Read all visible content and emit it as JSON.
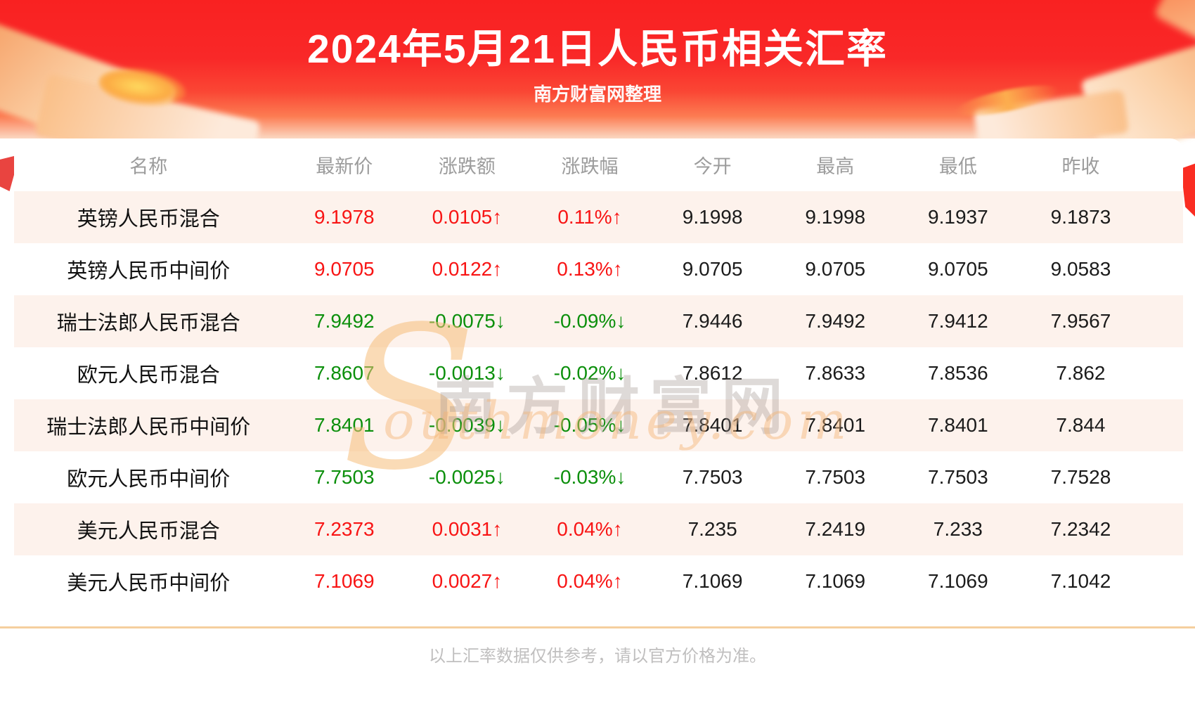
{
  "page": {
    "title": "2024年5月21日人民币相关汇率",
    "subtitle": "南方财富网整理",
    "footer_note": "以上汇率数据仅供参考，请以官方价格为准。"
  },
  "watermark": {
    "initial": "S",
    "cn": "南方财富网",
    "en": "outhmoney.com"
  },
  "icons": {
    "up-arrow": "↑",
    "down-arrow": "↓"
  },
  "colors": {
    "hero_red": "#f92222",
    "up_red": "#f81414",
    "down_green": "#0b8f0b",
    "row_alt_bg": "#fdf2ec",
    "header_text_gray": "#9c9c9c",
    "divider_tan": "#f5cf9e",
    "footer_text_gray": "#c0bfbf",
    "value_black": "#1b1b1b"
  },
  "chart_data": {
    "type": "table",
    "title": "2024年5月21日人民币相关汇率",
    "columns": [
      "名称",
      "最新价",
      "涨跌额",
      "涨跌幅",
      "今开",
      "最高",
      "最低",
      "昨收"
    ],
    "column_keys": [
      "name",
      "latest",
      "change",
      "change-pct",
      "open",
      "high",
      "low",
      "prev-close"
    ],
    "rows": [
      [
        "英镑人民币混合",
        "9.1978",
        "0.0105↑",
        "0.11%↑",
        "9.1998",
        "9.1998",
        "9.1937",
        "9.1873"
      ],
      [
        "英镑人民币中间价",
        "9.0705",
        "0.0122↑",
        "0.13%↑",
        "9.0705",
        "9.0705",
        "9.0705",
        "9.0583"
      ],
      [
        "瑞士法郎人民币混合",
        "7.9492",
        "-0.0075↓",
        "-0.09%↓",
        "7.9446",
        "7.9492",
        "7.9412",
        "7.9567"
      ],
      [
        "欧元人民币混合",
        "7.8607",
        "-0.0013↓",
        "-0.02%↓",
        "7.8612",
        "7.8633",
        "7.8536",
        "7.862"
      ],
      [
        "瑞士法郎人民币中间价",
        "7.8401",
        "-0.0039↓",
        "-0.05%↓",
        "7.8401",
        "7.8401",
        "7.8401",
        "7.844"
      ],
      [
        "欧元人民币中间价",
        "7.7503",
        "-0.0025↓",
        "-0.03%↓",
        "7.7503",
        "7.7503",
        "7.7503",
        "7.7528"
      ],
      [
        "美元人民币混合",
        "7.2373",
        "0.0031↑",
        "0.04%↑",
        "7.235",
        "7.2419",
        "7.233",
        "7.2342"
      ],
      [
        "美元人民币中间价",
        "7.1069",
        "0.0027↑",
        "0.04%↑",
        "7.1069",
        "7.1069",
        "7.1069",
        "7.1042"
      ]
    ],
    "row_directions": [
      "up",
      "up",
      "down",
      "down",
      "down",
      "down",
      "up",
      "up"
    ],
    "legend_position": "none",
    "grid": false
  }
}
